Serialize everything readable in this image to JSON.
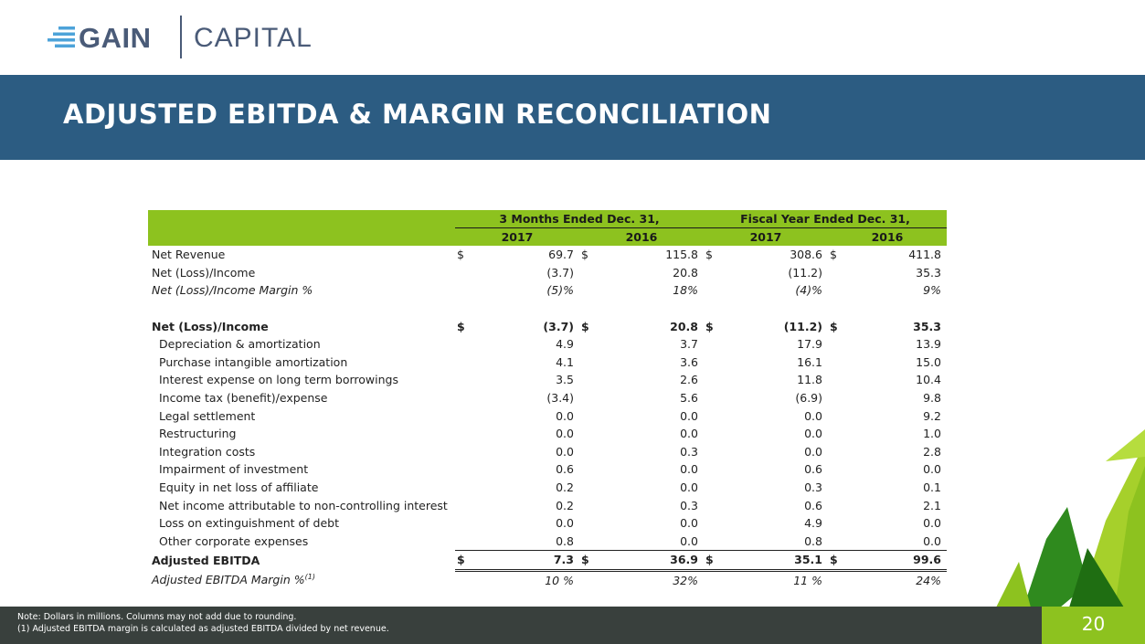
{
  "logo": {
    "brand": "GAIN",
    "brand2": "CAPITAL"
  },
  "title": "ADJUSTED EBITDA & MARGIN RECONCILIATION",
  "table": {
    "group_headers": [
      "3 Months Ended Dec. 31,",
      "Fiscal Year Ended Dec. 31,"
    ],
    "year_headers": [
      "2017",
      "2016",
      "2017",
      "2016"
    ],
    "currency": "$",
    "rows": [
      {
        "label": "Net Revenue",
        "values": [
          "69.7",
          "115.8",
          "308.6",
          "411.8"
        ]
      },
      {
        "label": "Net (Loss)/Income",
        "values": [
          "(3.7)",
          "20.8",
          "(11.2)",
          "35.3"
        ]
      },
      {
        "label": "Net (Loss)/Income Margin %",
        "values": [
          "(5)%",
          "18%",
          "(4)%",
          "9%"
        ]
      },
      {
        "label": "Net (Loss)/Income",
        "values": [
          "(3.7)",
          "20.8",
          "(11.2)",
          "35.3"
        ]
      },
      {
        "label": "Depreciation & amortization",
        "values": [
          "4.9",
          "3.7",
          "17.9",
          "13.9"
        ]
      },
      {
        "label": "Purchase intangible amortization",
        "values": [
          "4.1",
          "3.6",
          "16.1",
          "15.0"
        ]
      },
      {
        "label": "Interest expense on long term borrowings",
        "values": [
          "3.5",
          "2.6",
          "11.8",
          "10.4"
        ]
      },
      {
        "label": "Income tax (benefit)/expense",
        "values": [
          "(3.4)",
          "5.6",
          "(6.9)",
          "9.8"
        ]
      },
      {
        "label": "Legal settlement",
        "values": [
          "0.0",
          "0.0",
          "0.0",
          "9.2"
        ]
      },
      {
        "label": "Restructuring",
        "values": [
          "0.0",
          "0.0",
          "0.0",
          "1.0"
        ]
      },
      {
        "label": "Integration costs",
        "values": [
          "0.0",
          "0.3",
          "0.0",
          "2.8"
        ]
      },
      {
        "label": "Impairment of investment",
        "values": [
          "0.6",
          "0.0",
          "0.6",
          "0.0"
        ]
      },
      {
        "label": "Equity in net loss of affiliate",
        "values": [
          "0.2",
          "0.0",
          "0.3",
          "0.1"
        ]
      },
      {
        "label": "Net income attributable to non-controlling interest",
        "values": [
          "0.2",
          "0.3",
          "0.6",
          "2.1"
        ]
      },
      {
        "label": "Loss on extinguishment of debt",
        "values": [
          "0.0",
          "0.0",
          "4.9",
          "0.0"
        ]
      },
      {
        "label": "Other corporate expenses",
        "values": [
          "0.8",
          "0.0",
          "0.8",
          "0.0"
        ]
      },
      {
        "label": "Adjusted EBITDA",
        "values": [
          "7.3",
          "36.9",
          "35.1",
          "99.6"
        ]
      },
      {
        "label": "Adjusted EBITDA Margin %",
        "superscript": "(1)",
        "values": [
          "10 %",
          "32%",
          "11 %",
          "24%"
        ]
      }
    ]
  },
  "footer": {
    "note": "Note: Dollars in millions. Columns may not add due to rounding.",
    "footnote": "(1)  Adjusted EBITDA margin is calculated as adjusted EBITDA divided by net revenue.",
    "page_number": "20"
  },
  "colors": {
    "brand_navy": "#2c5c82",
    "accent_green": "#8dc21f",
    "footer_dark": "#39403d"
  }
}
